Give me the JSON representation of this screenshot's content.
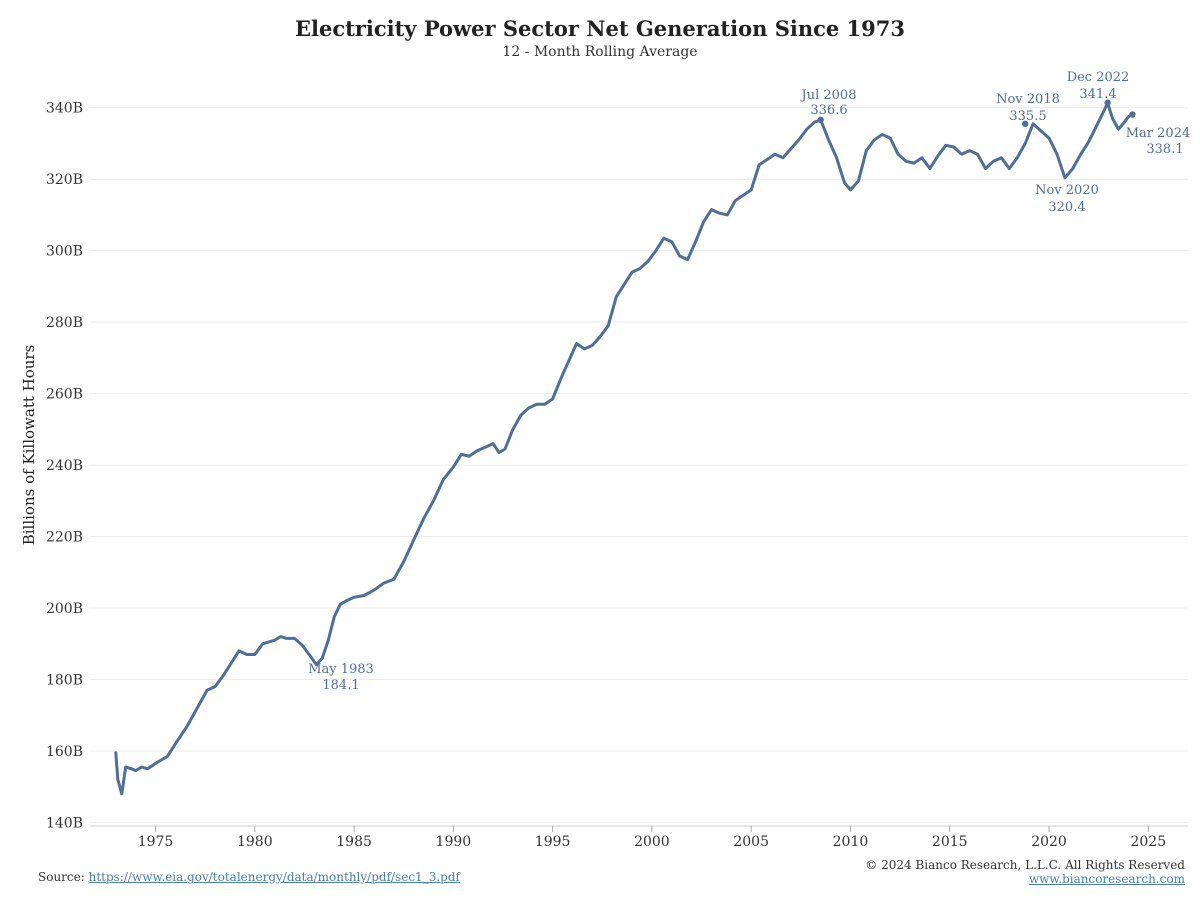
{
  "header": {
    "title": "Electricity Power Sector Net Generation Since 1973",
    "subtitle": "12 - Month Rolling Average"
  },
  "footer": {
    "source_label": "Source:",
    "source_link": "https://www.eia.gov/totalenergy/data/monthly/pdf/sec1_3.pdf",
    "copyright": "© 2024 Bianco Research, L.L.C. All Rights Reserved",
    "website": "www.biancoresearch.com"
  },
  "colors": {
    "line": "#4e6f99",
    "annotation": "#4e6f99",
    "grid": "#ececec"
  },
  "chart_data": {
    "type": "line",
    "title": "Electricity Power Sector Net Generation Since 1973",
    "subtitle": "12 - Month Rolling Average",
    "ylabel": "Billions of Killowatt Hours",
    "xlabel": "",
    "xlim": [
      1971.7,
      2027.0
    ],
    "ylim": [
      139,
      350
    ],
    "x_ticks": [
      1975,
      1980,
      1985,
      1990,
      1995,
      2000,
      2005,
      2010,
      2015,
      2020,
      2025
    ],
    "y_ticks": [
      140,
      160,
      180,
      200,
      220,
      240,
      260,
      280,
      300,
      320,
      340
    ],
    "y_tick_labels": [
      "140B",
      "160B",
      "180B",
      "200B",
      "220B",
      "240B",
      "260B",
      "280B",
      "300B",
      "320B",
      "340B"
    ],
    "grid": "horizontal",
    "series": [
      {
        "x": [
          1973.0,
          1973.1,
          1973.3,
          1973.5,
          1973.8,
          1974.0,
          1974.3,
          1974.6,
          1975.0,
          1975.3,
          1975.6,
          1976.0,
          1976.3,
          1976.6,
          1977.0,
          1977.3,
          1977.6,
          1978.0,
          1978.4,
          1978.8,
          1979.2,
          1979.6,
          1980.0,
          1980.4,
          1980.7,
          1981.0,
          1981.3,
          1981.6,
          1982.0,
          1982.4,
          1982.8,
          1983.1,
          1983.4,
          1983.7,
          1984.0,
          1984.3,
          1984.6,
          1985.0,
          1985.5,
          1986.0,
          1986.5,
          1987.0,
          1987.5,
          1988.0,
          1988.5,
          1989.0,
          1989.5,
          1990.0,
          1990.4,
          1990.8,
          1991.2,
          1991.6,
          1992.0,
          1992.3,
          1992.6,
          1993.0,
          1993.4,
          1993.8,
          1994.2,
          1994.6,
          1995.0,
          1995.4,
          1995.8,
          1996.2,
          1996.6,
          1997.0,
          1997.4,
          1997.8,
          1998.2,
          1998.6,
          1999.0,
          1999.4,
          1999.8,
          2000.2,
          2000.6,
          2001.0,
          2001.4,
          2001.8,
          2002.2,
          2002.6,
          2003.0,
          2003.4,
          2003.8,
          2004.2,
          2004.6,
          2005.0,
          2005.4,
          2005.8,
          2006.2,
          2006.6,
          2007.0,
          2007.4,
          2007.8,
          2008.2,
          2008.5,
          2008.9,
          2009.3,
          2009.7,
          2010.0,
          2010.4,
          2010.8,
          2011.2,
          2011.6,
          2012.0,
          2012.4,
          2012.8,
          2013.2,
          2013.6,
          2014.0,
          2014.4,
          2014.8,
          2015.2,
          2015.6,
          2016.0,
          2016.4,
          2016.8,
          2017.2,
          2017.6,
          2018.0,
          2018.4,
          2018.8,
          2019.2,
          2019.6,
          2020.0,
          2020.4,
          2020.8,
          2021.2,
          2021.6,
          2022.0,
          2022.4,
          2022.8,
          2022.95,
          2023.2,
          2023.5,
          2023.8,
          2024.0,
          2024.2
        ],
        "y": [
          159.5,
          152.0,
          148.0,
          155.5,
          155.0,
          154.5,
          155.5,
          155.0,
          156.5,
          157.5,
          158.5,
          162.0,
          164.5,
          167.0,
          171.0,
          174.0,
          177.0,
          178.0,
          181.0,
          184.5,
          188.0,
          187.0,
          187.0,
          190.0,
          190.5,
          191.0,
          192.0,
          191.5,
          191.5,
          189.5,
          186.5,
          184.1,
          186.0,
          191.0,
          197.5,
          201.0,
          202.0,
          203.0,
          203.5,
          205.0,
          207.0,
          208.0,
          213.0,
          219.0,
          225.0,
          230.0,
          236.0,
          239.5,
          243.0,
          242.5,
          244.0,
          245.0,
          246.0,
          243.5,
          244.5,
          250.0,
          254.0,
          256.0,
          257.0,
          257.0,
          258.5,
          264.0,
          269.0,
          274.0,
          272.5,
          273.5,
          276.0,
          279.0,
          287.0,
          290.5,
          294.0,
          295.0,
          297.0,
          300.0,
          303.5,
          302.5,
          298.5,
          297.5,
          302.5,
          308.0,
          311.5,
          310.5,
          310.0,
          314.0,
          315.5,
          317.0,
          324.0,
          325.5,
          327.0,
          326.0,
          328.5,
          331.0,
          334.0,
          336.0,
          336.6,
          331.0,
          326.0,
          319.0,
          317.0,
          319.5,
          328.0,
          331.0,
          332.5,
          331.5,
          327.0,
          325.0,
          324.5,
          326.0,
          323.0,
          326.5,
          329.5,
          329.0,
          327.0,
          328.0,
          327.0,
          323.0,
          325.0,
          326.0,
          323.0,
          326.0,
          330.0,
          335.5,
          333.5,
          331.5,
          327.0,
          320.4,
          323.0,
          327.0,
          330.5,
          335.0,
          339.5,
          341.4,
          337.0,
          334.0,
          336.0,
          337.5,
          338.1
        ]
      }
    ],
    "annotations": [
      {
        "label": "May 1983",
        "value": "184.1"
      },
      {
        "label": "Jul 2008",
        "value": "336.6"
      },
      {
        "label": "Nov 2018",
        "value": "335.5"
      },
      {
        "label": "Nov 2020",
        "value": "320.4"
      },
      {
        "label": "Dec 2022",
        "value": "341.4"
      },
      {
        "label": "Mar 2024",
        "value": "338.1"
      }
    ]
  }
}
